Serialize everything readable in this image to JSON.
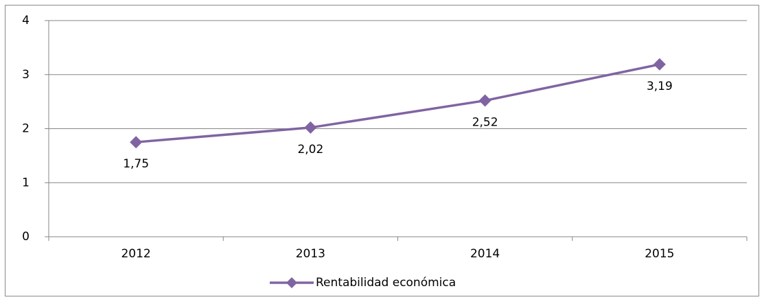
{
  "chart_data": {
    "type": "line",
    "categories": [
      "2012",
      "2013",
      "2014",
      "2015"
    ],
    "series": [
      {
        "name": "Rentabilidad económica",
        "color": "#8064a2",
        "values": [
          1.75,
          2.02,
          2.52,
          3.19
        ],
        "value_labels": [
          "1,75",
          "2,02",
          "2,52",
          "3,19"
        ]
      }
    ],
    "ylim": [
      0,
      4
    ],
    "yticks": [
      0,
      1,
      2,
      3,
      4
    ],
    "grid": true,
    "legend": "bottom"
  }
}
